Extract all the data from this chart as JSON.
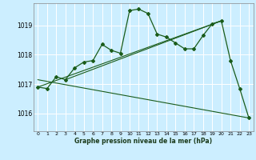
{
  "bg_color": "#cceeff",
  "grid_color": "#ffffff",
  "line_color": "#1a5c1a",
  "title": "Graphe pression niveau de la mer (hPa)",
  "ylabel_ticks": [
    1016,
    1017,
    1018,
    1019
  ],
  "xticks": [
    0,
    1,
    2,
    3,
    4,
    5,
    6,
    7,
    8,
    9,
    10,
    11,
    12,
    13,
    14,
    15,
    16,
    17,
    18,
    19,
    20,
    21,
    22,
    23
  ],
  "xlim": [
    -0.5,
    23.5
  ],
  "ylim": [
    1015.4,
    1019.75
  ],
  "main_x": [
    0,
    1,
    2,
    3,
    4,
    5,
    6,
    7,
    8,
    9,
    10,
    11,
    12,
    13,
    14,
    15,
    16,
    17,
    18,
    19,
    20,
    21,
    22,
    23
  ],
  "main_y": [
    1016.9,
    1016.85,
    1017.25,
    1017.15,
    1017.55,
    1017.75,
    1017.8,
    1018.35,
    1018.15,
    1018.05,
    1019.5,
    1019.55,
    1019.4,
    1018.7,
    1018.6,
    1018.4,
    1018.2,
    1018.2,
    1018.65,
    1019.05,
    1019.15,
    1017.8,
    1016.85,
    1015.85
  ],
  "line1_x": [
    0,
    20
  ],
  "line1_y": [
    1016.9,
    1019.15
  ],
  "line2_x": [
    0,
    23
  ],
  "line2_y": [
    1017.15,
    1015.85
  ],
  "line3_x": [
    3,
    20
  ],
  "line3_y": [
    1017.15,
    1019.15
  ]
}
